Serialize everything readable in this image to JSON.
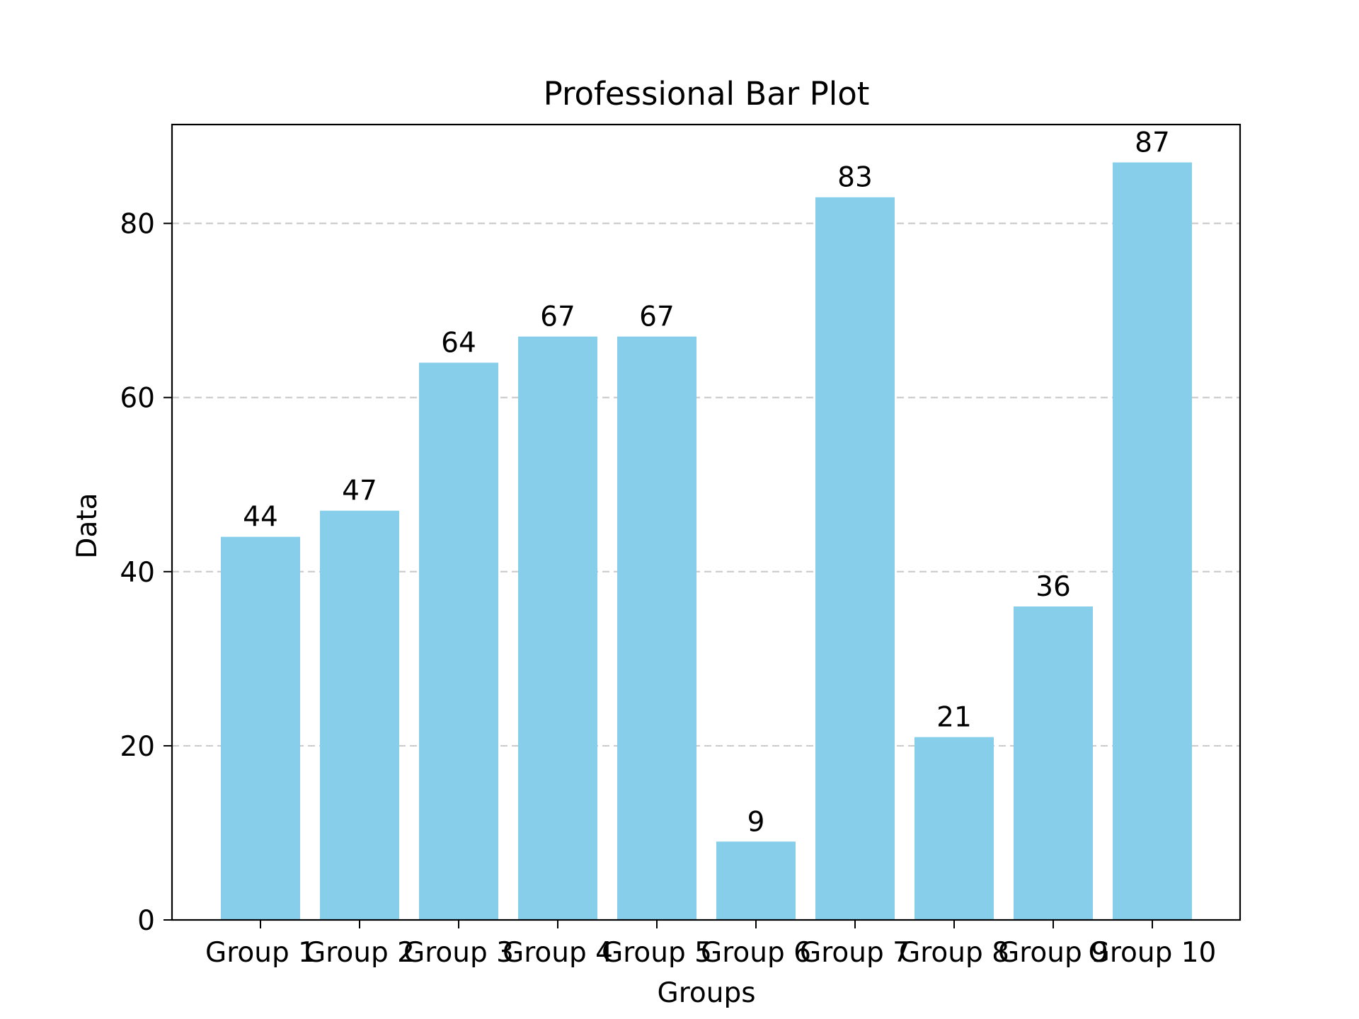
{
  "chart_data": {
    "type": "bar",
    "title": "Professional Bar Plot",
    "xlabel": "Groups",
    "ylabel": "Data",
    "categories": [
      "Group 1",
      "Group 2",
      "Group 3",
      "Group 4",
      "Group 5",
      "Group 6",
      "Group 7",
      "Group 8",
      "Group 9",
      "Group 10"
    ],
    "values": [
      44,
      47,
      64,
      67,
      67,
      9,
      83,
      21,
      36,
      87
    ],
    "ylim": [
      0,
      91.35
    ],
    "yticks": [
      0,
      20,
      40,
      60,
      80
    ],
    "grid": "y-dashed",
    "bar_color": "#87CEEB",
    "grid_color": "#cccccc",
    "axis_color": "#000000",
    "show_value_labels": true
  }
}
